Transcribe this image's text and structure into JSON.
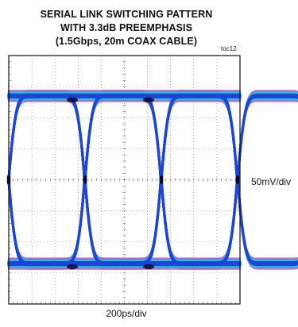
{
  "chart_data": {
    "type": "eye_diagram",
    "title_lines": [
      "SERIAL LINK SWITCHING PATTERN",
      "WITH 3.3dB PREEMPHASIS",
      "(1.5Gbps, 20m COAX CABLE)"
    ],
    "figure_id": "toc12",
    "xlabel": "200ps/div",
    "ylabel": "50mV/div",
    "grid": "dotted",
    "x_divisions": 10,
    "y_divisions": 8,
    "series": [
      {
        "color": "#d24bd8",
        "spread": 6.5,
        "width": 2.2,
        "alpha": 0.9
      },
      {
        "color": "#19b9a0",
        "spread": 4.5,
        "width": 2.6,
        "alpha": 0.9
      },
      {
        "color": "#23c5e6",
        "spread": 3.0,
        "width": 3.0,
        "alpha": 0.9
      },
      {
        "color": "#1e44d8",
        "spread": 1.5,
        "width": 3.2,
        "alpha": 0.95
      }
    ],
    "peak_color": "#0a0a2a",
    "bit_period_divisions": 3.28,
    "crossings_divisions": [
      0.0,
      3.3,
      6.6,
      9.9
    ],
    "colors": {
      "frame": "#111111",
      "grid": "#777777"
    }
  }
}
